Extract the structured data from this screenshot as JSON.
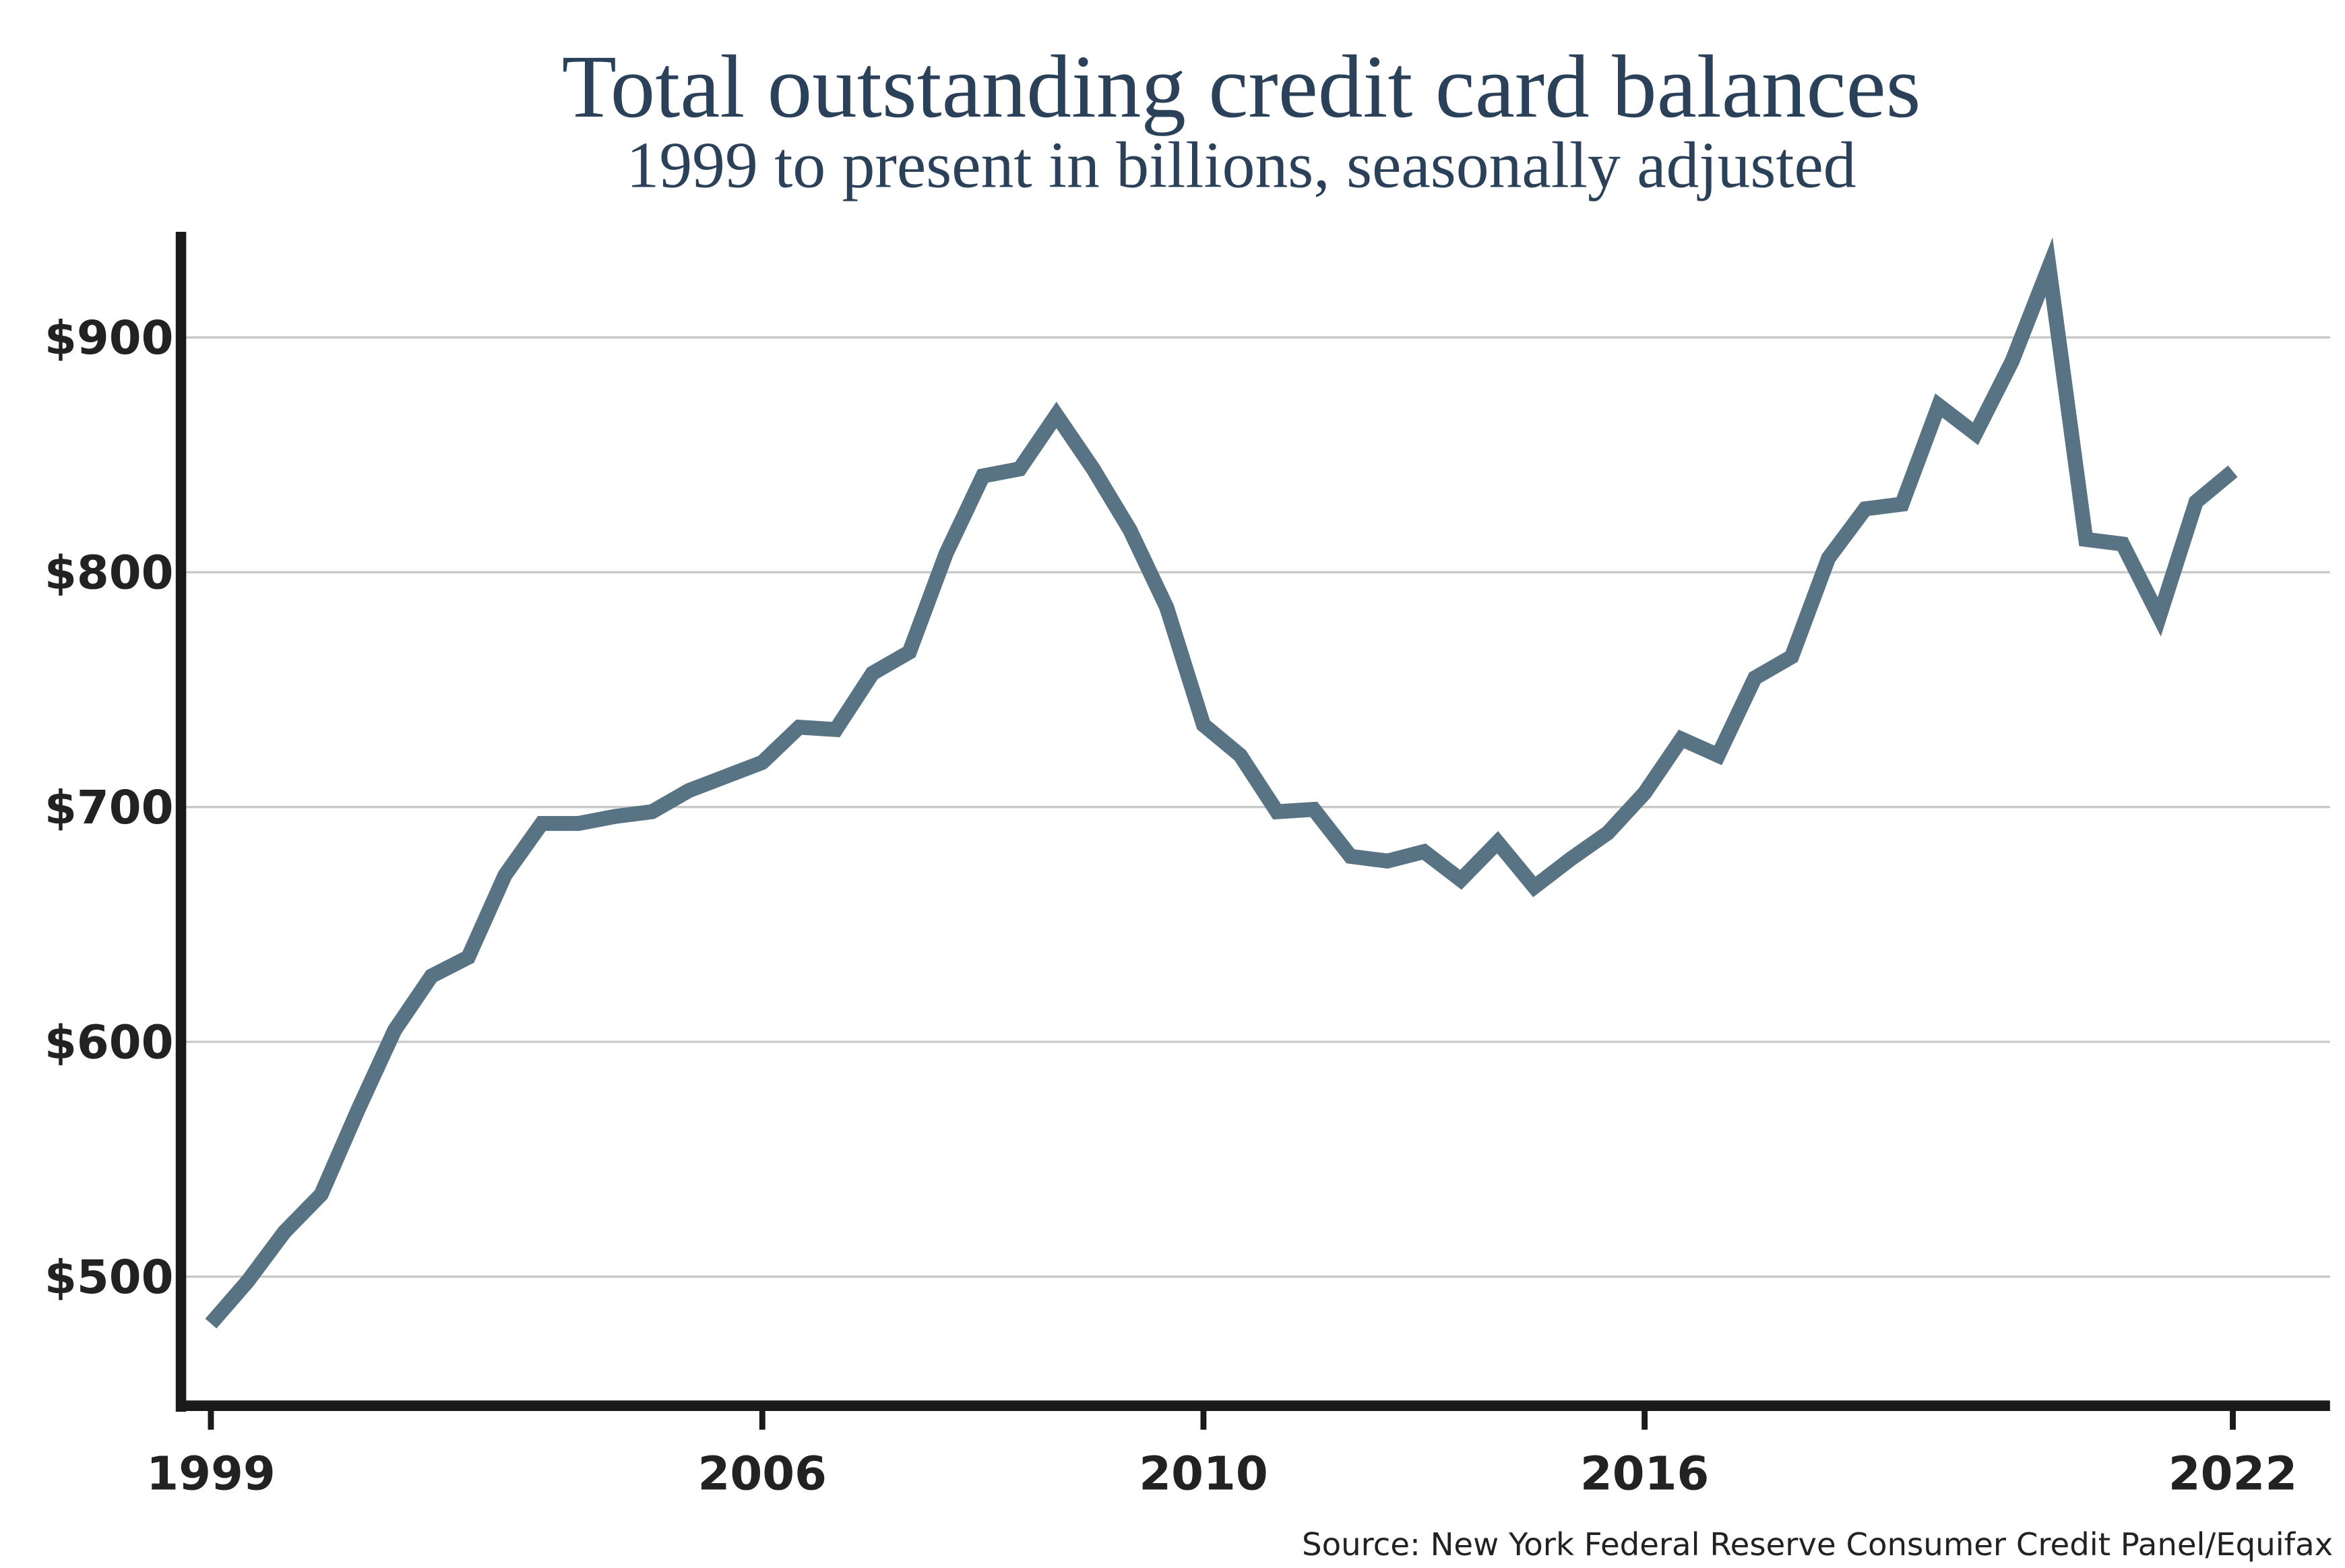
{
  "chart_data": {
    "type": "line",
    "title": "Total outstanding credit card balances",
    "subtitle": "1999 to present in billions, seasonally adjusted",
    "source": "Source: New York Federal Reserve Consumer Credit Panel/Equifax",
    "categories": [
      "1999",
      null,
      null,
      null,
      null,
      null,
      null,
      null,
      null,
      null,
      null,
      null,
      null,
      null,
      null,
      "2006",
      null,
      null,
      null,
      null,
      null,
      null,
      null,
      null,
      null,
      null,
      null,
      "2010",
      null,
      null,
      null,
      null,
      null,
      null,
      null,
      null,
      null,
      null,
      null,
      "2016",
      null,
      null,
      null,
      null,
      null,
      null,
      null,
      null,
      null,
      null,
      null,
      null,
      null,
      null,
      null,
      "2022"
    ],
    "series": [
      {
        "name": "Credit card balances",
        "color": "#587384",
        "values": [
          480,
          498,
          519,
          535,
          571,
          605,
          628,
          636,
          671,
          693,
          693,
          696,
          698,
          707,
          713,
          719,
          734,
          733,
          757,
          766,
          808,
          841,
          844,
          867,
          844,
          818,
          785,
          735,
          722,
          698,
          699,
          679,
          677,
          681,
          669,
          685,
          666,
          678,
          689,
          706,
          729,
          722,
          755,
          764,
          806,
          827,
          829,
          871,
          859,
          890,
          930,
          814,
          812,
          781,
          830,
          843
        ]
      }
    ],
    "ylim": [
      445,
      945
    ],
    "yticks": [
      {
        "value": 500,
        "label": "$500"
      },
      {
        "value": 600,
        "label": "$600"
      },
      {
        "value": 700,
        "label": "$700"
      },
      {
        "value": 800,
        "label": "$800"
      },
      {
        "value": 900,
        "label": "$900"
      }
    ],
    "grid": true
  }
}
